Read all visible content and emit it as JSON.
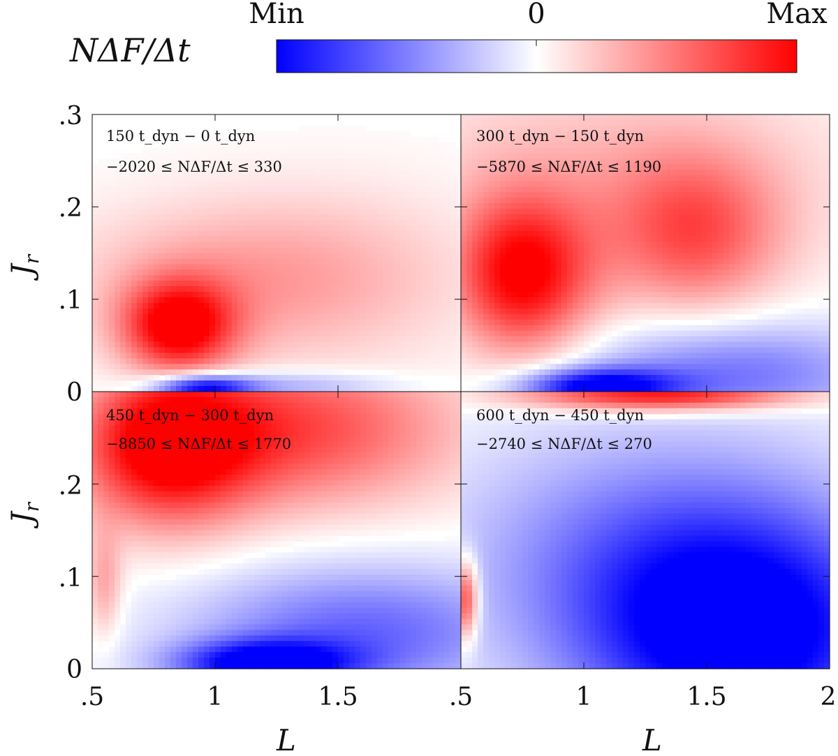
{
  "chart_data": {
    "type": "heatmap",
    "quantity_label": "NΔF/Δt",
    "colorbar": {
      "labels": [
        "Min",
        "0",
        "Max"
      ],
      "colors": {
        "min": "#0000ff",
        "zero": "#ffffff",
        "max": "#ff0000"
      }
    },
    "xlabel": "L",
    "ylabel": "J",
    "ylabel_subscript": "r",
    "xlim": [
      0.5,
      2.0
    ],
    "ylim": [
      0.0,
      0.3
    ],
    "x_tick_values": [
      0.5,
      1.0,
      1.5,
      2.0
    ],
    "x_tick_labels": [
      ".5",
      "1",
      "1.5",
      ".5",
      "1",
      "1.5",
      "2"
    ],
    "y_tick_values": [
      0.0,
      0.1,
      0.2,
      0.3
    ],
    "y_tick_labels": [
      ".3",
      ".2",
      ".1",
      "0",
      ".2",
      ".1",
      "0"
    ],
    "panels": [
      {
        "t_end": "150",
        "t_start": "0",
        "time_line": "150 t_dyn − 0 t_dyn",
        "min": -2020,
        "max": 330,
        "range_line": "−2020 ≤ NΔF/Δt ≤ 330",
        "blobs": [
          {
            "L": 0.85,
            "J": 0.07,
            "sL": 0.16,
            "sJ": 0.035,
            "v": 1.0
          },
          {
            "L": 1.1,
            "J": 0.12,
            "sL": 0.5,
            "sJ": 0.06,
            "v": 0.35
          },
          {
            "L": 1.6,
            "J": 0.13,
            "sL": 0.45,
            "sJ": 0.08,
            "v": 0.1
          },
          {
            "L": 0.95,
            "J": 0.004,
            "sL": 0.14,
            "sJ": 0.01,
            "v": -1.0
          },
          {
            "L": 1.3,
            "J": 0.006,
            "sL": 0.3,
            "sJ": 0.012,
            "v": -0.35
          }
        ]
      },
      {
        "t_end": "300",
        "t_start": "150",
        "time_line": "300 t_dyn − 150 t_dyn",
        "min": -5870,
        "max": 1190,
        "range_line": "−5870 ≤ NΔF/Δt ≤ 1190",
        "blobs": [
          {
            "L": 0.75,
            "J": 0.125,
            "sL": 0.2,
            "sJ": 0.06,
            "v": 1.0
          },
          {
            "L": 1.45,
            "J": 0.17,
            "sL": 0.25,
            "sJ": 0.06,
            "v": 0.6
          },
          {
            "L": 1.1,
            "J": 0.24,
            "sL": 0.7,
            "sJ": 0.08,
            "v": 0.25
          },
          {
            "L": 1.05,
            "J": 0.005,
            "sL": 0.22,
            "sJ": 0.014,
            "v": -1.0
          },
          {
            "L": 1.6,
            "J": 0.02,
            "sL": 0.45,
            "sJ": 0.04,
            "v": -0.55
          }
        ]
      },
      {
        "t_end": "450",
        "t_start": "300",
        "time_line": "450 t_dyn − 300 t_dyn",
        "min": -8850,
        "max": 1770,
        "range_line": "−8850 ≤ NΔF/Δt ≤ 1770",
        "blobs": [
          {
            "L": 0.8,
            "J": 0.24,
            "sL": 0.25,
            "sJ": 0.06,
            "v": 1.0
          },
          {
            "L": 1.35,
            "J": 0.26,
            "sL": 0.45,
            "sJ": 0.06,
            "v": 0.7
          },
          {
            "L": 0.55,
            "J": 0.09,
            "sL": 0.05,
            "sJ": 0.04,
            "v": 0.35
          },
          {
            "L": 1.2,
            "J": 0.005,
            "sL": 0.25,
            "sJ": 0.018,
            "v": -1.0
          },
          {
            "L": 1.6,
            "J": 0.04,
            "sL": 0.5,
            "sJ": 0.05,
            "v": -0.6
          }
        ]
      },
      {
        "t_end": "600",
        "t_start": "450",
        "time_line": "600 t_dyn − 450 t_dyn",
        "min": -2740,
        "max": 270,
        "range_line": "−2740 ≤ NΔF/Δt ≤ 270",
        "blobs": [
          {
            "L": 1.3,
            "J": 0.296,
            "sL": 0.4,
            "sJ": 0.012,
            "v": 1.0
          },
          {
            "L": 0.52,
            "J": 0.075,
            "sL": 0.035,
            "sJ": 0.03,
            "v": 0.85
          },
          {
            "L": 1.65,
            "J": 0.03,
            "sL": 0.45,
            "sJ": 0.09,
            "v": -1.0
          },
          {
            "L": 1.3,
            "J": 0.12,
            "sL": 0.6,
            "sJ": 0.1,
            "v": -0.5
          }
        ]
      }
    ]
  }
}
